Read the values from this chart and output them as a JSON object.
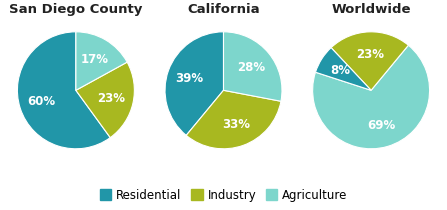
{
  "charts": [
    {
      "title": "San Diego County",
      "slices": [
        60,
        23,
        17
      ],
      "labels": [
        "60%",
        "23%",
        "17%"
      ],
      "colors": [
        "#2196a8",
        "#a8b820",
        "#7dd6cc"
      ],
      "startangle": 90
    },
    {
      "title": "California",
      "slices": [
        39,
        33,
        28
      ],
      "labels": [
        "39%",
        "33%",
        "28%"
      ],
      "colors": [
        "#2196a8",
        "#a8b820",
        "#7dd6cc"
      ],
      "startangle": 90
    },
    {
      "title": "Worldwide",
      "slices": [
        69,
        23,
        8
      ],
      "labels": [
        "69%",
        "23%",
        "8%"
      ],
      "colors": [
        "#7dd6cc",
        "#a8b820",
        "#2196a8"
      ],
      "startangle": 162
    }
  ],
  "legend": [
    {
      "label": "Residential",
      "color": "#2196a8"
    },
    {
      "label": "Industry",
      "color": "#a8b820"
    },
    {
      "label": "Agriculture",
      "color": "#7dd6cc"
    }
  ],
  "bg_color": "#ffffff",
  "title_fontsize": 9.5,
  "label_fontsize": 8.5,
  "legend_fontsize": 8.5
}
